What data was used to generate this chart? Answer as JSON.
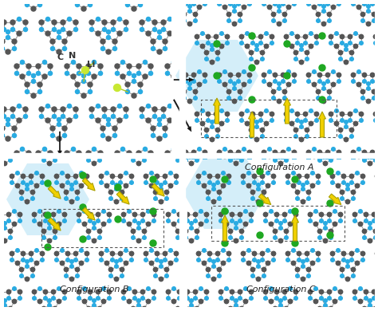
{
  "background_color": "#ffffff",
  "C_color": "#555555",
  "N_color": "#29abe2",
  "Li_color": "#c8e832",
  "Li_dot_color": "#1fa822",
  "highlight_color": "#b8e4f5",
  "yellow_arrow_color": "#f0d000",
  "yellow_arrow_edge": "#aaa000",
  "figsize": [
    4.74,
    3.9
  ],
  "dpi": 100,
  "label_A": "Configuration A",
  "label_B": "Configuration B",
  "label_C": "Configuration C"
}
